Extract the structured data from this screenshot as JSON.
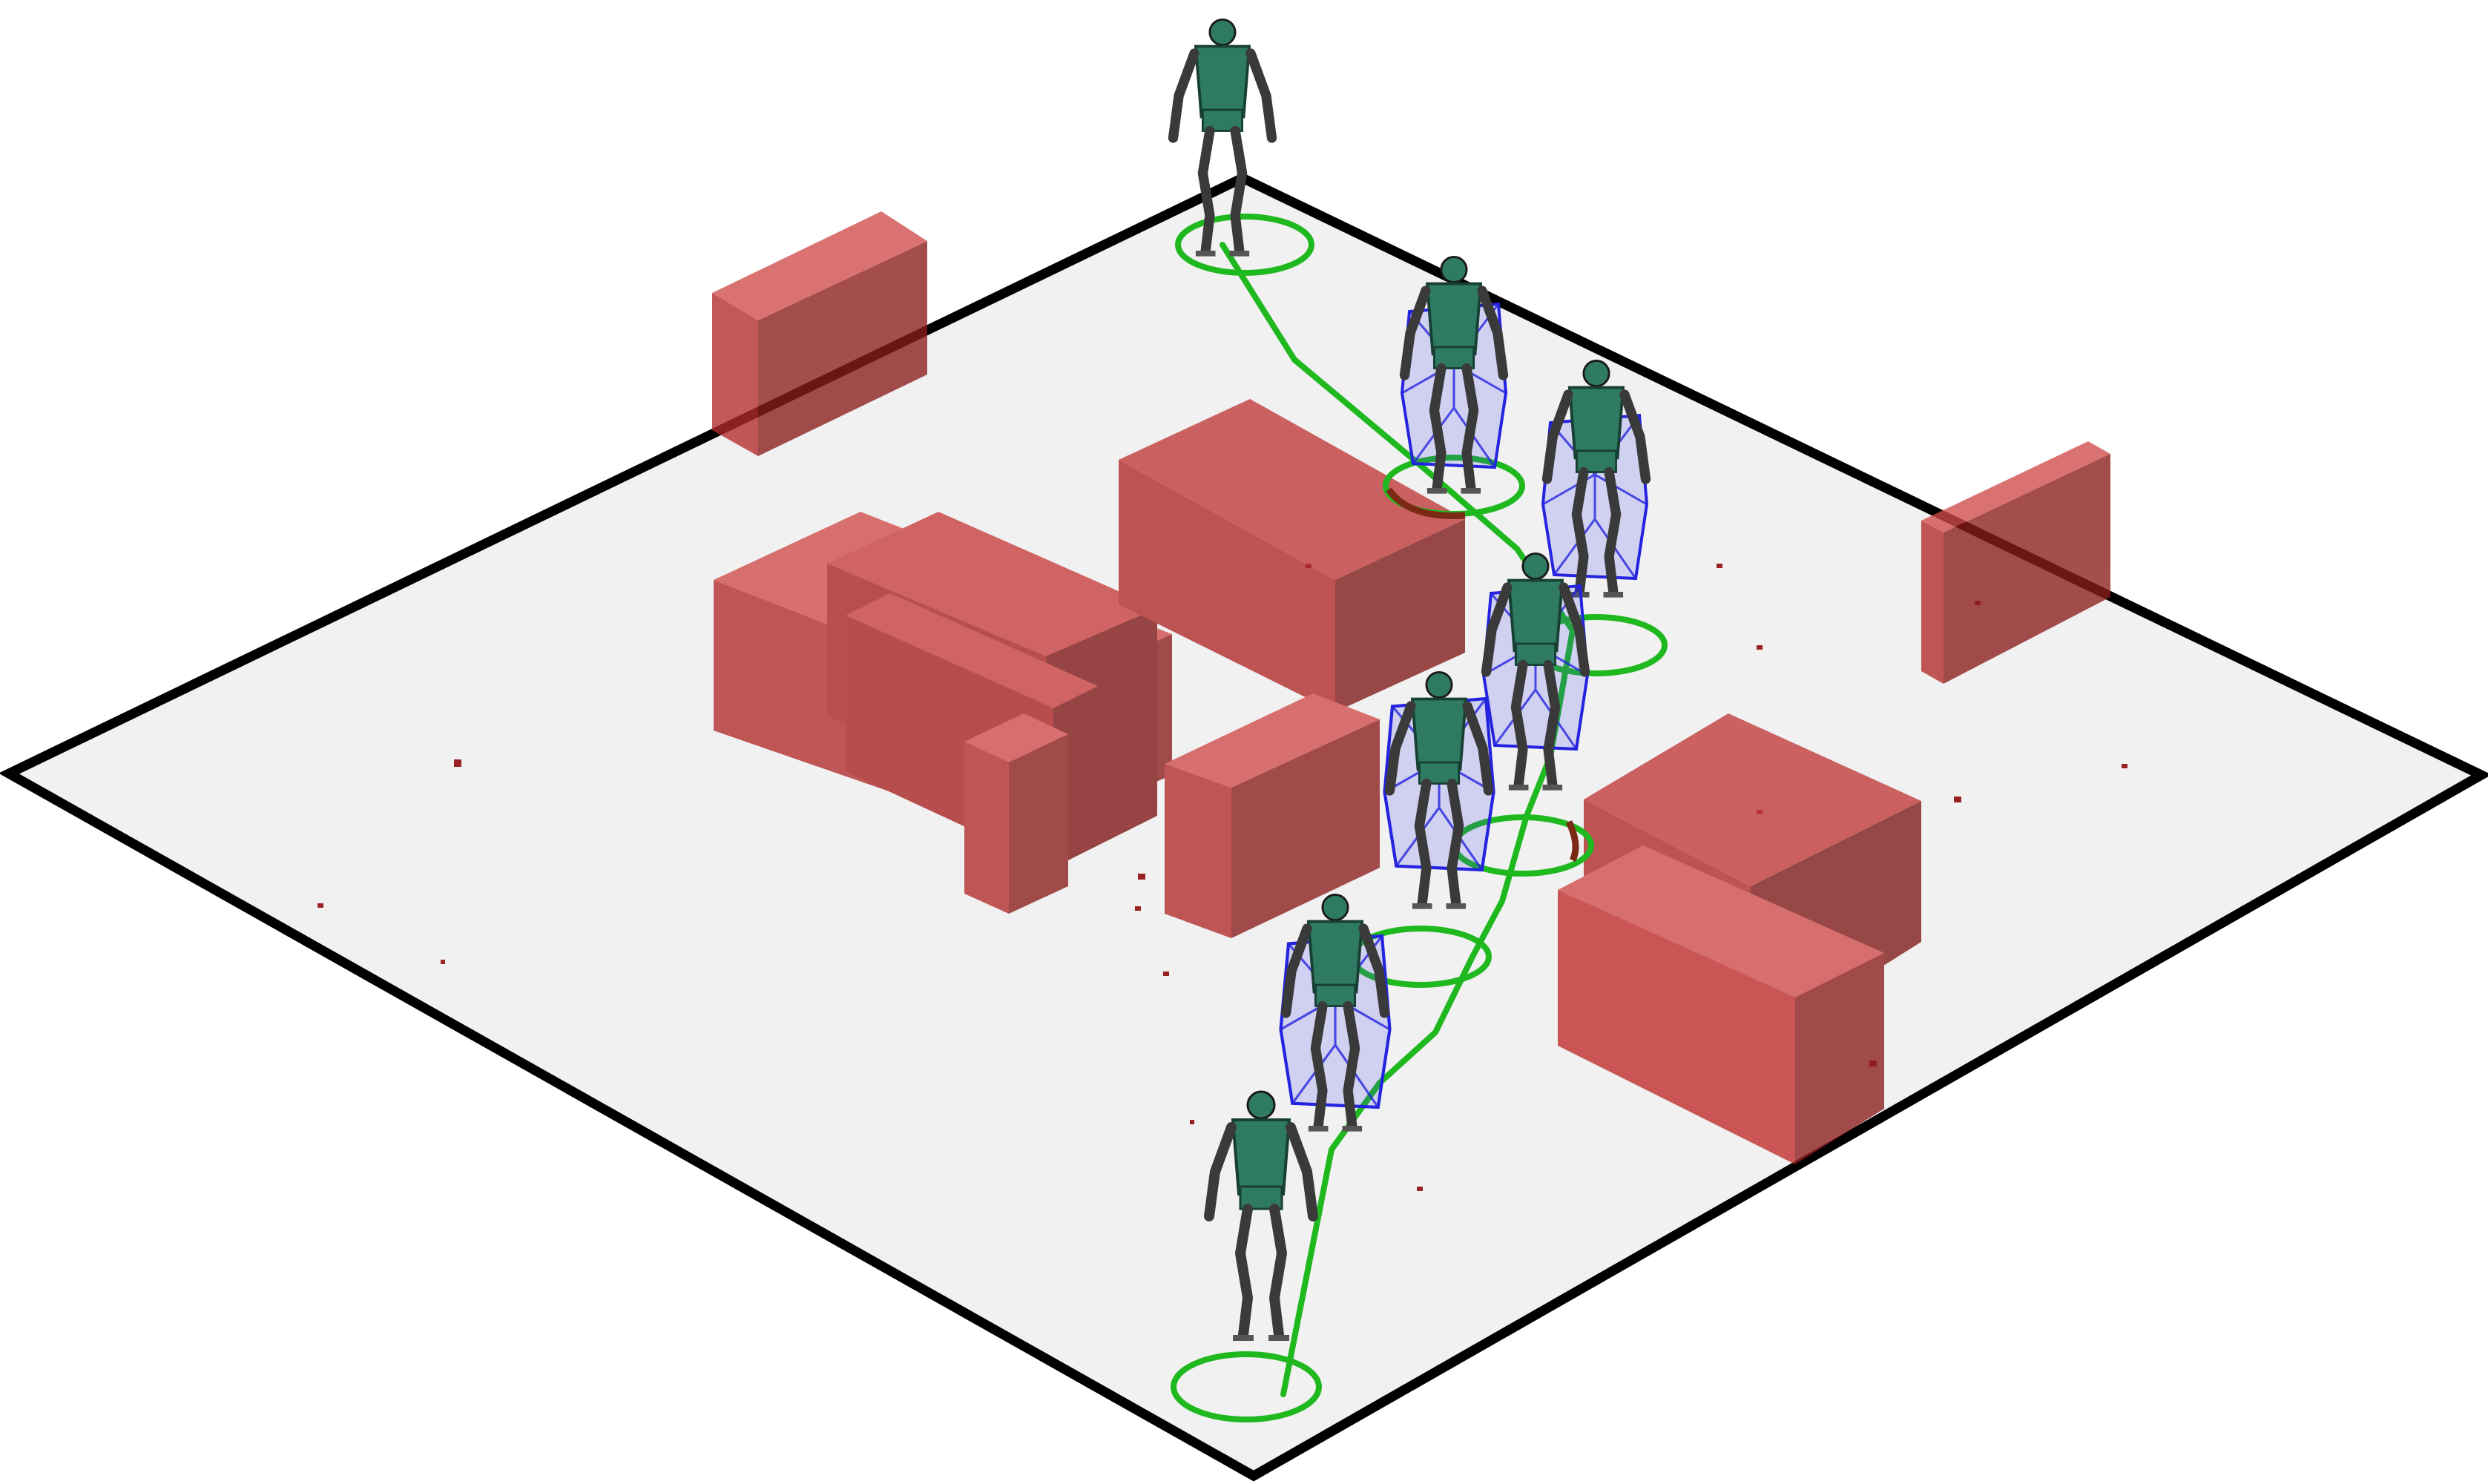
{
  "scene": {
    "colors": {
      "floor": "#f1f1f1",
      "floor_border": "#000000",
      "obstacle_front": "#b22a2a",
      "obstacle_side": "#8a1c1c",
      "obstacle_top": "#d24b4b",
      "path": "#1fb81f",
      "waypoint_ring": "#1fb81f",
      "ring_shadow": "#7a2a14",
      "robot_torso": "#2f7a62",
      "robot_limb": "#3a3a3a",
      "collision_mesh": "#2424e0"
    },
    "icons": {
      "obstacle": "red-translucent-box",
      "robot": "bipedal-humanoid",
      "waypoint": "green-ring"
    }
  }
}
